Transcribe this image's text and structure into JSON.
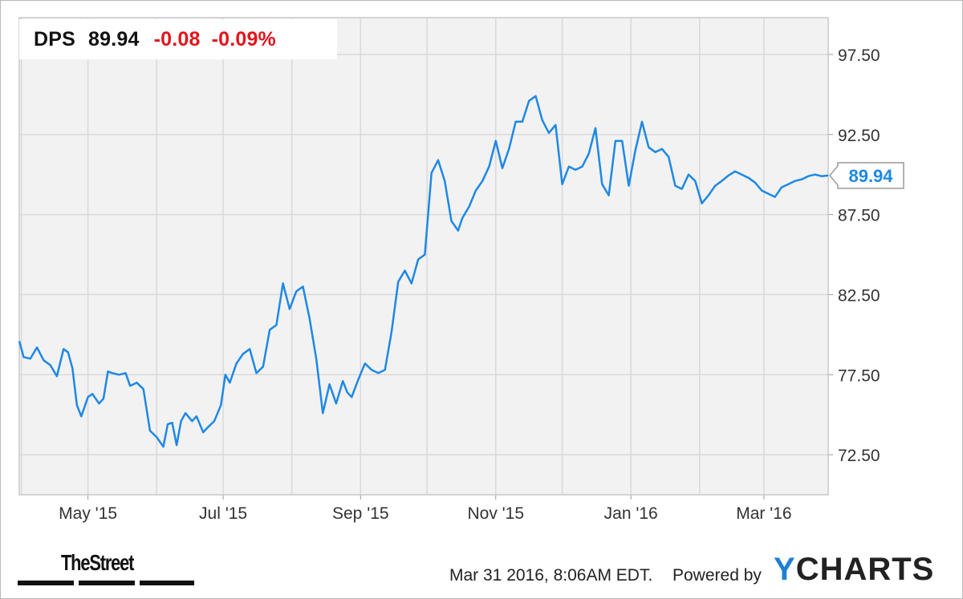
{
  "header": {
    "ticker": "DPS",
    "price": "89.94",
    "change": "-0.08",
    "change_pct": "-0.09%"
  },
  "colors": {
    "line": "#1e88e5",
    "negative": "#e3141b",
    "plot_bg": "#f2f2f2",
    "grid": "#d9d9d9"
  },
  "chart_data": {
    "type": "line",
    "title": "",
    "xlabel": "",
    "ylabel": "",
    "x_ticks": [
      "May '15",
      "Jul '15",
      "Sep '15",
      "Nov '15",
      "Jan '16",
      "Mar '16"
    ],
    "y_ticks": [
      "72.50",
      "77.50",
      "82.50",
      "87.50",
      "92.50",
      "97.50"
    ],
    "ylim": [
      70.0,
      99.8
    ],
    "xlim": [
      "2015-03-31",
      "2016-03-30"
    ],
    "grid": true,
    "last_value_label": "89.94",
    "series": [
      {
        "x": [
          "2015-03-31",
          "2015-04-02",
          "2015-04-05",
          "2015-04-08",
          "2015-04-11",
          "2015-04-14",
          "2015-04-17",
          "2015-04-20",
          "2015-04-22",
          "2015-04-24",
          "2015-04-26",
          "2015-04-28",
          "2015-05-01",
          "2015-05-03",
          "2015-05-06",
          "2015-05-08",
          "2015-05-10",
          "2015-05-12",
          "2015-05-15",
          "2015-05-18",
          "2015-05-20",
          "2015-05-23",
          "2015-05-26",
          "2015-05-29",
          "2015-06-01",
          "2015-06-04",
          "2015-06-06",
          "2015-06-08",
          "2015-06-10",
          "2015-06-12",
          "2015-06-14",
          "2015-06-17",
          "2015-06-19",
          "2015-06-22",
          "2015-06-24",
          "2015-06-27",
          "2015-06-30",
          "2015-07-02",
          "2015-07-04",
          "2015-07-07",
          "2015-07-10",
          "2015-07-13",
          "2015-07-16",
          "2015-07-19",
          "2015-07-22",
          "2015-07-25",
          "2015-07-28",
          "2015-07-31",
          "2015-08-03",
          "2015-08-06",
          "2015-08-09",
          "2015-08-12",
          "2015-08-15",
          "2015-08-18",
          "2015-08-21",
          "2015-08-24",
          "2015-08-26",
          "2015-08-28",
          "2015-08-31",
          "2015-09-03",
          "2015-09-06",
          "2015-09-09",
          "2015-09-12",
          "2015-09-15",
          "2015-09-18",
          "2015-09-21",
          "2015-09-24",
          "2015-09-27",
          "2015-09-30",
          "2015-10-03",
          "2015-10-06",
          "2015-10-09",
          "2015-10-12",
          "2015-10-15",
          "2015-10-17",
          "2015-10-20",
          "2015-10-23",
          "2015-10-26",
          "2015-10-29",
          "2015-11-01",
          "2015-11-04",
          "2015-11-07",
          "2015-11-10",
          "2015-11-13",
          "2015-11-16",
          "2015-11-19",
          "2015-11-22",
          "2015-11-25",
          "2015-11-28",
          "2015-12-01",
          "2015-12-04",
          "2015-12-07",
          "2015-12-10",
          "2015-12-13",
          "2015-12-16",
          "2015-12-19",
          "2015-12-22",
          "2015-12-25",
          "2015-12-28",
          "2015-12-31",
          "2016-01-03",
          "2016-01-06",
          "2016-01-09",
          "2016-01-12",
          "2016-01-15",
          "2016-01-18",
          "2016-01-21",
          "2016-01-24",
          "2016-01-27",
          "2016-01-30",
          "2016-02-02",
          "2016-02-05",
          "2016-02-08",
          "2016-02-11",
          "2016-02-14",
          "2016-02-17",
          "2016-02-20",
          "2016-02-23",
          "2016-02-26",
          "2016-02-29",
          "2016-03-03",
          "2016-03-06",
          "2016-03-09",
          "2016-03-12",
          "2016-03-15",
          "2016-03-18",
          "2016-03-21",
          "2016-03-24",
          "2016-03-27",
          "2016-03-30"
        ],
        "values": [
          79.6,
          78.6,
          78.5,
          79.2,
          78.4,
          78.1,
          77.4,
          79.1,
          78.9,
          77.9,
          75.6,
          74.9,
          76.1,
          76.3,
          75.7,
          76.0,
          77.7,
          77.6,
          77.5,
          77.6,
          76.8,
          77.0,
          76.6,
          74.0,
          73.6,
          73.0,
          74.4,
          74.5,
          73.1,
          74.6,
          75.1,
          74.6,
          74.9,
          73.9,
          74.2,
          74.6,
          75.6,
          77.5,
          77.0,
          78.2,
          78.8,
          79.1,
          77.6,
          78.0,
          80.3,
          80.6,
          83.2,
          81.6,
          82.7,
          83.0,
          81.0,
          78.5,
          75.1,
          76.9,
          75.7,
          77.1,
          76.4,
          76.1,
          77.2,
          78.2,
          77.8,
          77.6,
          77.8,
          80.2,
          83.3,
          84.0,
          83.2,
          84.7,
          85.0,
          90.1,
          90.9,
          89.6,
          87.1,
          86.5,
          87.3,
          88.0,
          89.0,
          89.6,
          90.5,
          92.1,
          90.4,
          91.6,
          93.3,
          93.3,
          94.6,
          94.9,
          93.4,
          92.6,
          93.1,
          89.4,
          90.5,
          90.3,
          90.5,
          91.3,
          92.9,
          89.4,
          88.7,
          92.1,
          92.1,
          89.3,
          91.5,
          93.3,
          91.7,
          91.4,
          91.6,
          91.1,
          89.3,
          89.1,
          90.0,
          89.6,
          88.2,
          88.7,
          89.3,
          89.6,
          89.94,
          90.2,
          90.0,
          89.8,
          89.5,
          89.0,
          88.8,
          88.6,
          89.2,
          89.4,
          89.6,
          89.7,
          89.9,
          90.0,
          89.9,
          89.94
        ]
      }
    ]
  },
  "footer": {
    "timestamp": "Mar 31 2016, 8:06AM EDT.",
    "powered_by": "Powered by",
    "brand_y": "Y",
    "brand_rest": "CHARTS",
    "source_logo": "TheStreet"
  }
}
